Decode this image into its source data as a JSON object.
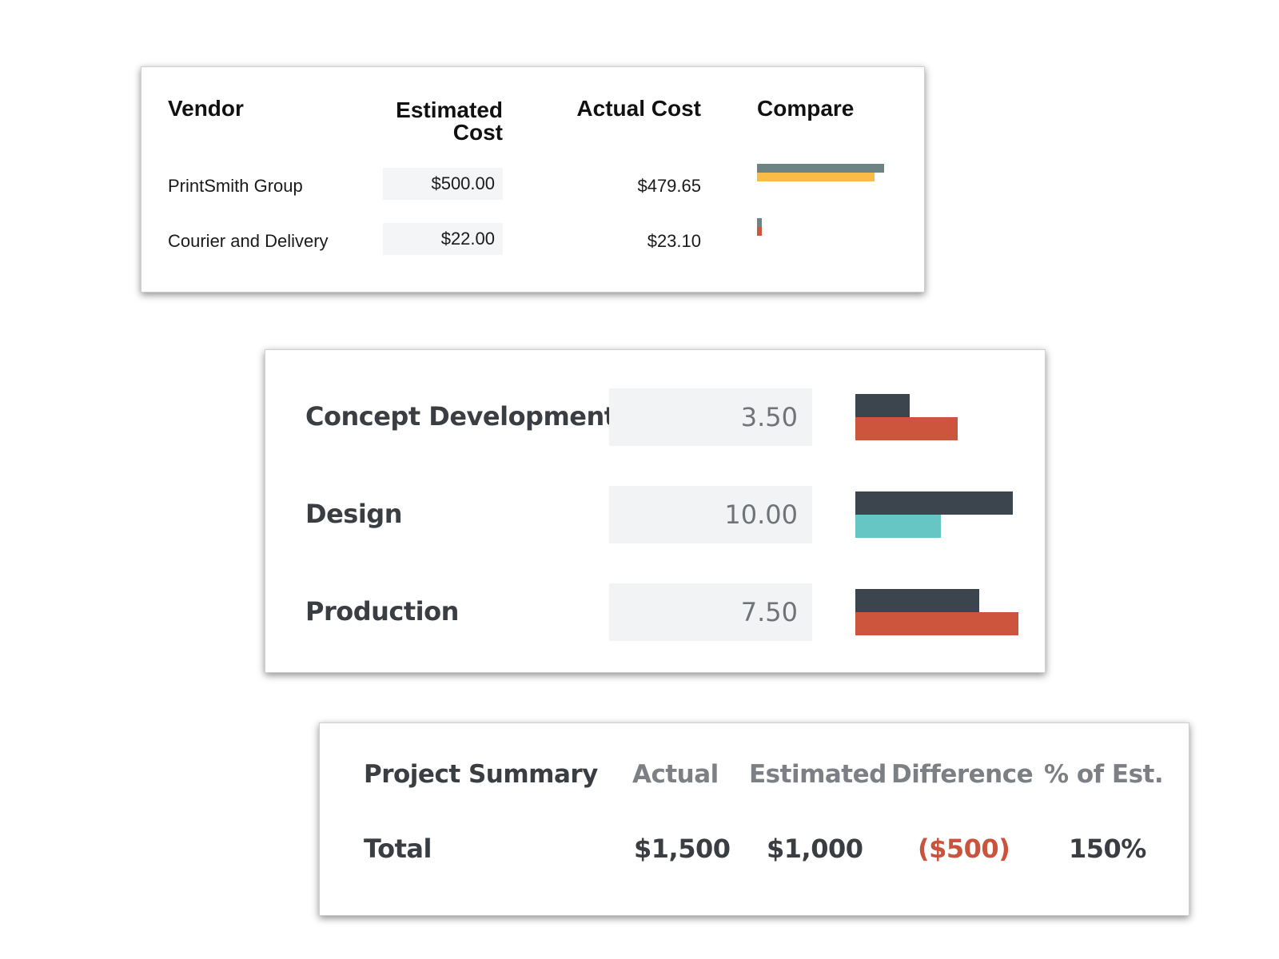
{
  "colors": {
    "estimated_bar_dark": "#3c444e",
    "slate_bar": "#6e8384",
    "yellow_bar": "#fbbb47",
    "red_bar": "#ce553d",
    "teal_bar": "#66c6c3",
    "negative_text": "#c9533d"
  },
  "vendors": {
    "headers": {
      "vendor": "Vendor",
      "estimated_line1": "Estimated",
      "estimated_line2": "Cost",
      "actual": "Actual Cost",
      "compare": "Compare"
    },
    "rows": [
      {
        "name": "PrintSmith Group",
        "estimated": "$500.00",
        "actual": "$479.65"
      },
      {
        "name": "Courier and Delivery",
        "estimated": "$22.00",
        "actual": "$23.10"
      }
    ]
  },
  "phases": {
    "rows": [
      {
        "name": "Concept Development",
        "hours": "3.50"
      },
      {
        "name": "Design",
        "hours": "10.00"
      },
      {
        "name": "Production",
        "hours": "7.50"
      }
    ]
  },
  "summary": {
    "title": "Project Summary",
    "headers": {
      "actual": "Actual",
      "estimated": "Estimated",
      "difference": "Difference",
      "percent": "% of Est."
    },
    "total": {
      "label": "Total",
      "actual": "$1,500",
      "estimated": "$1,000",
      "difference": "($500)",
      "percent": "150%"
    }
  }
}
